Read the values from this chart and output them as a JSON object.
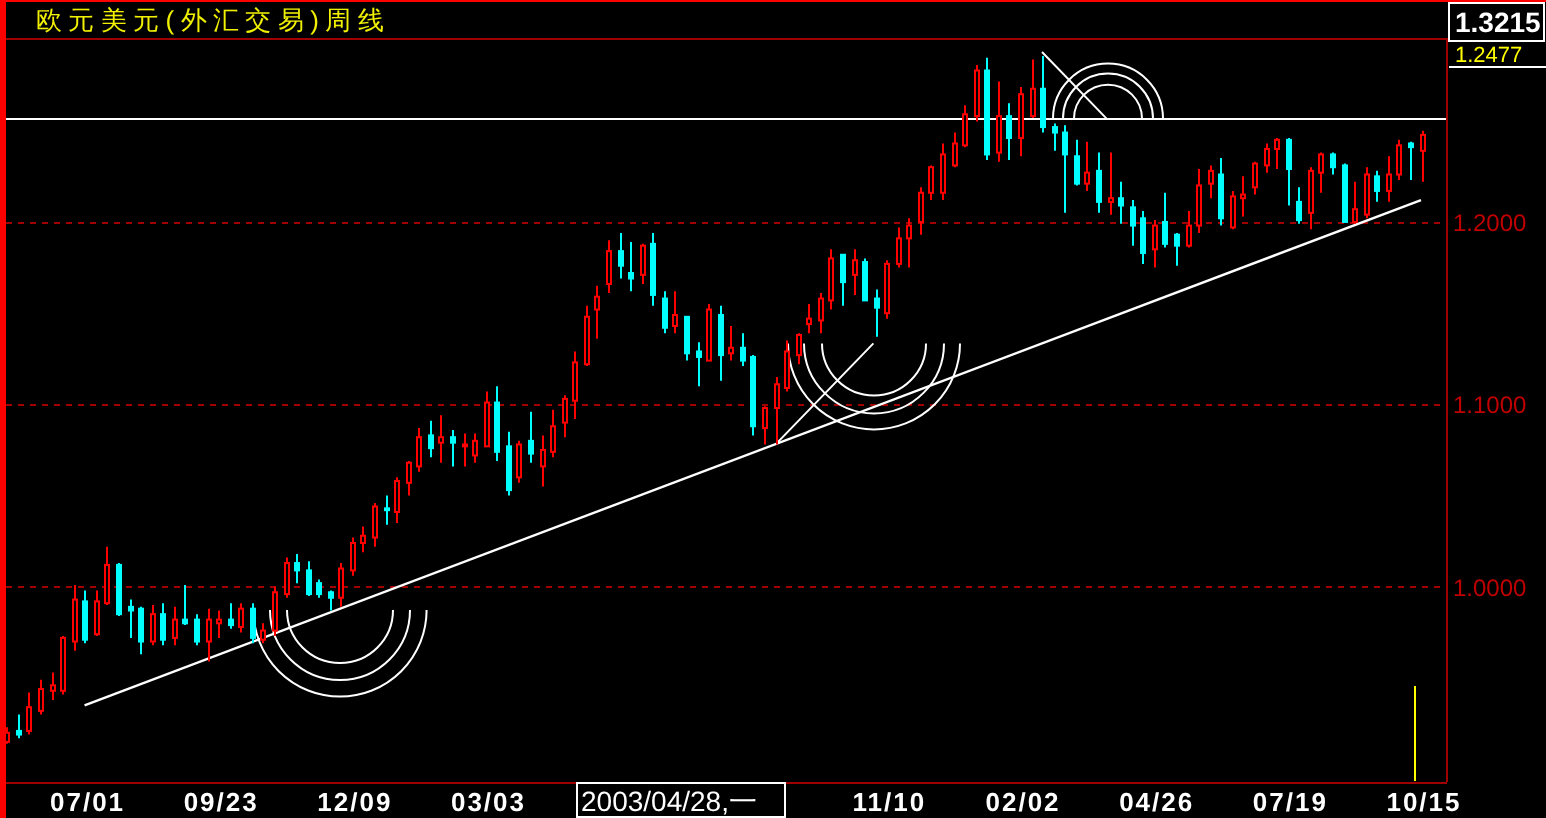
{
  "chart_data": {
    "type": "candlestick",
    "title": "欧元美元(外汇交易)周线",
    "categories": [
      null,
      null,
      null,
      null,
      null,
      null,
      null,
      "07/01",
      null,
      null,
      null,
      null,
      null,
      null,
      null,
      null,
      null,
      null,
      null,
      "09/23",
      null,
      null,
      null,
      null,
      null,
      null,
      null,
      null,
      null,
      null,
      null,
      "12/09",
      null,
      null,
      null,
      null,
      null,
      null,
      null,
      null,
      null,
      null,
      null,
      "03/03",
      null,
      null,
      null,
      null,
      null,
      null,
      null,
      null,
      null,
      null,
      null,
      null,
      null,
      null,
      null,
      null,
      null,
      null,
      null,
      null,
      null,
      null,
      null,
      null,
      null,
      null,
      null,
      null,
      null,
      null,
      null,
      null,
      null,
      null,
      null,
      "11/10",
      null,
      null,
      null,
      null,
      null,
      null,
      null,
      null,
      null,
      null,
      null,
      "02/02",
      null,
      null,
      null,
      null,
      null,
      null,
      null,
      null,
      null,
      null,
      null,
      "04/26",
      null,
      null,
      null,
      null,
      null,
      null,
      null,
      null,
      null,
      null,
      null,
      "07/19",
      null,
      null,
      null,
      null,
      null,
      null,
      null,
      null,
      null,
      null,
      null,
      "10/15"
    ],
    "ohlc": [
      [
        0.915,
        0.923,
        0.914,
        0.92
      ],
      [
        0.921,
        0.93,
        0.917,
        0.919
      ],
      [
        0.921,
        0.942,
        0.919,
        0.934
      ],
      [
        0.932,
        0.949,
        0.93,
        0.944
      ],
      [
        0.943,
        0.953,
        0.938,
        0.946
      ],
      [
        0.943,
        0.973,
        0.941,
        0.972
      ],
      [
        0.97,
        1.001,
        0.965,
        0.993
      ],
      [
        0.992,
        0.998,
        0.969,
        0.971
      ],
      [
        0.974,
        0.998,
        0.973,
        0.992
      ],
      [
        0.991,
        1.022,
        0.99,
        1.012
      ],
      [
        1.012,
        1.013,
        0.984,
        0.985
      ],
      [
        0.989,
        0.993,
        0.972,
        0.987
      ],
      [
        0.988,
        0.989,
        0.963,
        0.97
      ],
      [
        0.97,
        0.99,
        0.968,
        0.985
      ],
      [
        0.985,
        0.991,
        0.968,
        0.971
      ],
      [
        0.972,
        0.989,
        0.968,
        0.982
      ],
      [
        0.982,
        1.001,
        0.979,
        0.98
      ],
      [
        0.982,
        0.985,
        0.968,
        0.97
      ],
      [
        0.97,
        0.988,
        0.959,
        0.982
      ],
      [
        0.98,
        0.987,
        0.972,
        0.982
      ],
      [
        0.982,
        0.991,
        0.977,
        0.979
      ],
      [
        0.978,
        0.991,
        0.975,
        0.988
      ],
      [
        0.988,
        0.991,
        0.969,
        0.972
      ],
      [
        0.971,
        0.98,
        0.969,
        0.976
      ],
      [
        0.976,
        1.0,
        0.973,
        0.997
      ],
      [
        0.996,
        1.016,
        0.994,
        1.013
      ],
      [
        1.013,
        1.018,
        1.002,
        1.009
      ],
      [
        1.009,
        1.014,
        0.995,
        0.996
      ],
      [
        1.002,
        1.004,
        0.994,
        0.996
      ],
      [
        0.997,
        0.998,
        0.987,
        0.994
      ],
      [
        0.994,
        1.013,
        0.989,
        1.01
      ],
      [
        1.009,
        1.027,
        1.006,
        1.024
      ],
      [
        1.024,
        1.033,
        1.019,
        1.028
      ],
      [
        1.027,
        1.046,
        1.022,
        1.044
      ],
      [
        1.043,
        1.05,
        1.034,
        1.042
      ],
      [
        1.041,
        1.06,
        1.035,
        1.058
      ],
      [
        1.057,
        1.069,
        1.05,
        1.068
      ],
      [
        1.066,
        1.087,
        1.063,
        1.082
      ],
      [
        1.083,
        1.091,
        1.071,
        1.076
      ],
      [
        1.079,
        1.094,
        1.068,
        1.082
      ],
      [
        1.082,
        1.086,
        1.066,
        1.079
      ],
      [
        1.077,
        1.084,
        1.066,
        1.078
      ],
      [
        1.072,
        1.084,
        1.068,
        1.08
      ],
      [
        1.077,
        1.107,
        1.077,
        1.101
      ],
      [
        1.101,
        1.11,
        1.069,
        1.074
      ],
      [
        1.077,
        1.085,
        1.05,
        1.053
      ],
      [
        1.06,
        1.08,
        1.057,
        1.078
      ],
      [
        1.08,
        1.096,
        1.068,
        1.073
      ],
      [
        1.066,
        1.083,
        1.055,
        1.075
      ],
      [
        1.074,
        1.097,
        1.071,
        1.088
      ],
      [
        1.09,
        1.105,
        1.082,
        1.103
      ],
      [
        1.102,
        1.129,
        1.092,
        1.123
      ],
      [
        1.122,
        1.154,
        1.121,
        1.148
      ],
      [
        1.152,
        1.165,
        1.136,
        1.159
      ],
      [
        1.166,
        1.19,
        1.161,
        1.184
      ],
      [
        1.184,
        1.194,
        1.169,
        1.176
      ],
      [
        1.172,
        1.189,
        1.162,
        1.169
      ],
      [
        1.171,
        1.188,
        1.166,
        1.187
      ],
      [
        1.188,
        1.194,
        1.154,
        1.16
      ],
      [
        1.158,
        1.162,
        1.139,
        1.142
      ],
      [
        1.143,
        1.162,
        1.139,
        1.149
      ],
      [
        1.148,
        1.148,
        1.124,
        1.128
      ],
      [
        1.129,
        1.134,
        1.11,
        1.126
      ],
      [
        1.124,
        1.155,
        1.124,
        1.152
      ],
      [
        1.149,
        1.154,
        1.113,
        1.127
      ],
      [
        1.128,
        1.143,
        1.124,
        1.131
      ],
      [
        1.131,
        1.139,
        1.121,
        1.124
      ],
      [
        1.126,
        1.127,
        1.083,
        1.088
      ],
      [
        1.087,
        1.099,
        1.078,
        1.098
      ],
      [
        1.098,
        1.115,
        1.078,
        1.111
      ],
      [
        1.109,
        1.135,
        1.107,
        1.129
      ],
      [
        1.127,
        1.139,
        1.122,
        1.138
      ],
      [
        1.144,
        1.155,
        1.139,
        1.147
      ],
      [
        1.146,
        1.161,
        1.139,
        1.158
      ],
      [
        1.157,
        1.185,
        1.152,
        1.18
      ],
      [
        1.182,
        1.182,
        1.154,
        1.167
      ],
      [
        1.171,
        1.185,
        1.16,
        1.179
      ],
      [
        1.178,
        1.18,
        1.157,
        1.157
      ],
      [
        1.158,
        1.163,
        1.137,
        1.153
      ],
      [
        1.15,
        1.179,
        1.147,
        1.177
      ],
      [
        1.177,
        1.197,
        1.175,
        1.191
      ],
      [
        1.191,
        1.202,
        1.175,
        1.198
      ],
      [
        1.2,
        1.219,
        1.193,
        1.216
      ],
      [
        1.216,
        1.231,
        1.212,
        1.23
      ],
      [
        1.216,
        1.243,
        1.212,
        1.237
      ],
      [
        1.231,
        1.249,
        1.23,
        1.243
      ],
      [
        1.242,
        1.264,
        1.241,
        1.259
      ],
      [
        1.258,
        1.286,
        1.255,
        1.283
      ],
      [
        1.283,
        1.29,
        1.234,
        1.237
      ],
      [
        1.238,
        1.277,
        1.233,
        1.258
      ],
      [
        1.258,
        1.265,
        1.234,
        1.246
      ],
      [
        1.246,
        1.274,
        1.236,
        1.27
      ],
      [
        1.258,
        1.289,
        1.257,
        1.273
      ],
      [
        1.273,
        1.291,
        1.249,
        1.252
      ],
      [
        1.252,
        1.254,
        1.239,
        1.249
      ],
      [
        1.249,
        1.253,
        1.205,
        1.237
      ],
      [
        1.236,
        1.245,
        1.22,
        1.221
      ],
      [
        1.221,
        1.244,
        1.217,
        1.227
      ],
      [
        1.228,
        1.238,
        1.205,
        1.211
      ],
      [
        1.211,
        1.238,
        1.204,
        1.213
      ],
      [
        1.213,
        1.222,
        1.199,
        1.209
      ],
      [
        1.208,
        1.212,
        1.187,
        1.198
      ],
      [
        1.202,
        1.206,
        1.177,
        1.183
      ],
      [
        1.185,
        1.201,
        1.175,
        1.198
      ],
      [
        1.2,
        1.216,
        1.186,
        1.188
      ],
      [
        1.193,
        1.194,
        1.176,
        1.187
      ],
      [
        1.187,
        1.206,
        1.186,
        1.198
      ],
      [
        1.198,
        1.229,
        1.194,
        1.22
      ],
      [
        1.221,
        1.231,
        1.213,
        1.228
      ],
      [
        1.226,
        1.235,
        1.198,
        1.202
      ],
      [
        1.197,
        1.217,
        1.196,
        1.214
      ],
      [
        1.213,
        1.225,
        1.203,
        1.215
      ],
      [
        1.219,
        1.233,
        1.215,
        1.232
      ],
      [
        1.231,
        1.243,
        1.227,
        1.24
      ],
      [
        1.24,
        1.246,
        1.229,
        1.245
      ],
      [
        1.245,
        1.246,
        1.209,
        1.229
      ],
      [
        1.211,
        1.219,
        1.199,
        1.201
      ],
      [
        1.205,
        1.23,
        1.196,
        1.228
      ],
      [
        1.227,
        1.238,
        1.216,
        1.237
      ],
      [
        1.237,
        1.238,
        1.226,
        1.23
      ],
      [
        1.231,
        1.232,
        1.2,
        1.2
      ],
      [
        1.2,
        1.222,
        1.199,
        1.207
      ],
      [
        1.204,
        1.23,
        1.202,
        1.226
      ],
      [
        1.225,
        1.228,
        1.211,
        1.217
      ],
      [
        1.217,
        1.236,
        1.211,
        1.226
      ],
      [
        1.226,
        1.245,
        1.223,
        1.242
      ],
      [
        1.243,
        1.244,
        1.223,
        1.241
      ],
      [
        1.239,
        1.25,
        1.222,
        1.2477
      ]
    ],
    "colors": [
      "#ff0000",
      "#00ffff",
      "#ff0000",
      "#ff0000",
      "#ff0000",
      "#ff0000",
      "#ff0000",
      "#00ffff",
      "#ff0000",
      "#ff0000",
      "#00ffff",
      "#00ffff",
      "#00ffff",
      "#ff0000",
      "#00ffff",
      "#ff0000",
      "#00ffff",
      "#00ffff",
      "#ff0000",
      "#ff0000",
      "#00ffff",
      "#ff0000",
      "#00ffff",
      "#ff0000",
      "#ff0000",
      "#ff0000",
      "#00ffff",
      "#00ffff",
      "#00ffff",
      "#00ffff",
      "#ff0000",
      "#ff0000",
      "#ff0000",
      "#ff0000",
      "#00ffff",
      "#ff0000",
      "#ff0000",
      "#ff0000",
      "#00ffff",
      "#ff0000",
      "#00ffff",
      "#ff0000",
      "#ff0000",
      "#ff0000",
      "#00ffff",
      "#00ffff",
      "#ff0000",
      "#00ffff",
      "#ff0000",
      "#ff0000",
      "#ff0000",
      "#ff0000",
      "#ff0000",
      "#ff0000",
      "#ff0000",
      "#00ffff",
      "#00ffff",
      "#ff0000",
      "#00ffff",
      "#00ffff",
      "#ff0000",
      "#00ffff",
      "#00ffff",
      "#ff0000",
      "#00ffff",
      "#ff0000",
      "#00ffff",
      "#00ffff",
      "#ff0000",
      "#ff0000",
      "#ff0000",
      "#ff0000",
      "#ff0000",
      "#ff0000",
      "#ff0000",
      "#00ffff",
      "#ff0000",
      "#00ffff",
      "#00ffff",
      "#ff0000",
      "#ff0000",
      "#ff0000",
      "#ff0000",
      "#ff0000",
      "#ff0000",
      "#ff0000",
      "#ff0000",
      "#ff0000",
      "#00ffff",
      "#ff0000",
      "#00ffff",
      "#ff0000",
      "#ff0000",
      "#00ffff",
      "#00ffff",
      "#00ffff",
      "#00ffff",
      "#ff0000",
      "#00ffff",
      "#ff0000",
      "#00ffff",
      "#00ffff",
      "#00ffff",
      "#ff0000",
      "#00ffff",
      "#00ffff",
      "#ff0000",
      "#ff0000",
      "#ff0000",
      "#00ffff",
      "#ff0000",
      "#ff0000",
      "#ff0000",
      "#ff0000",
      "#ff0000",
      "#00ffff",
      "#00ffff",
      "#ff0000",
      "#ff0000",
      "#00ffff",
      "#00ffff",
      "#ff0000",
      "#ff0000",
      "#00ffff",
      "#ff0000",
      "#ff0000",
      "#00ffff",
      "#ff0000"
    ],
    "ylim": [
      0.893,
      1.3005
    ],
    "yticks": [
      {
        "value": 1.0,
        "label": "1.0000"
      },
      {
        "value": 1.1,
        "label": "1.1000"
      },
      {
        "value": 1.2,
        "label": "1.2000"
      }
    ],
    "grid": "y",
    "ref_lines": [
      {
        "axis": "y",
        "value": 1.2567,
        "color": "#ffffff"
      }
    ],
    "series": [
      {
        "type": "line",
        "x": [
          "07/01",
          "10/15"
        ],
        "values": [
          0.935,
          1.212
        ],
        "color": "#ffffff"
      }
    ],
    "annotations": [
      "1.3215",
      "1.2477",
      "2003/04/28,一"
    ]
  }
}
